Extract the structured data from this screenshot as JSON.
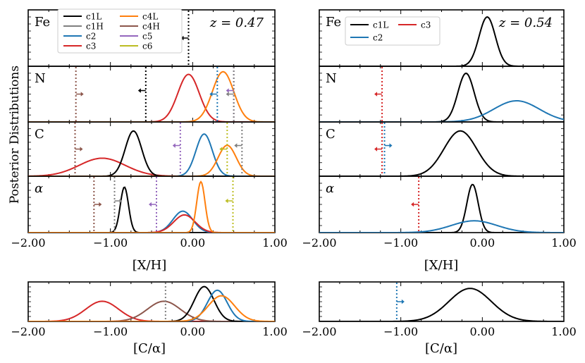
{
  "figure": {
    "ylabel": "Posterior Distributions",
    "xlabel_main": "[X/H]",
    "xlabel_ratio": "[C/α]",
    "xticks": [
      -2.0,
      -1.0,
      0.0,
      1.0
    ],
    "xtick_labels": [
      "−2.00",
      "−1.00",
      "0.00",
      "1.00"
    ],
    "xlim": [
      -2.0,
      1.0
    ]
  },
  "legend_left": {
    "entries": [
      {
        "label": "c1L",
        "color": "#000000"
      },
      {
        "label": "c1H",
        "color": "#7f7f7f"
      },
      {
        "label": "c2",
        "color": "#1f77b4"
      },
      {
        "label": "c3",
        "color": "#d62728"
      },
      {
        "label": "c4L",
        "color": "#ff7f0e"
      },
      {
        "label": "c4H",
        "color": "#8c564b"
      },
      {
        "label": "c5",
        "color": "#9467bd"
      },
      {
        "label": "c6",
        "color": "#bcbd22"
      }
    ]
  },
  "legend_right": {
    "entries": [
      {
        "label": "c1L",
        "color": "#000000"
      },
      {
        "label": "c3",
        "color": "#d62728"
      },
      {
        "label": "c2",
        "color": "#1f77b4"
      }
    ]
  },
  "chart_data": [
    {
      "type": "line",
      "panel": "left-Fe",
      "label": "Fe",
      "annotation": "z = 0.47",
      "series": [],
      "limits": [
        {
          "series": "c1L",
          "color": "#000000",
          "x": -0.05,
          "direction": "left"
        }
      ]
    },
    {
      "type": "line",
      "panel": "left-N",
      "label": "N",
      "series": [
        {
          "name": "c3",
          "color": "#d62728",
          "mu": -0.05,
          "sigma": 0.13,
          "amp": 0.9
        },
        {
          "name": "c4L",
          "color": "#ff7f0e",
          "mu": 0.37,
          "sigma": 0.13,
          "amp": 0.95
        }
      ],
      "limits": [
        {
          "series": "c4H",
          "color": "#8c564b",
          "x": -1.42,
          "direction": "right"
        },
        {
          "series": "c1L",
          "color": "#000000",
          "x": -0.57,
          "direction": "left"
        },
        {
          "series": "c2",
          "color": "#1f77b4",
          "x": 0.3,
          "direction": "left"
        },
        {
          "series": "c5",
          "color": "#9467bd",
          "x": 0.5,
          "direction": "left"
        },
        {
          "series": "c1H",
          "color": "#7f7f7f",
          "x": 0.5,
          "direction": "left"
        }
      ]
    },
    {
      "type": "line",
      "panel": "left-C",
      "label": "C",
      "series": [
        {
          "name": "c3",
          "color": "#d62728",
          "mu": -1.1,
          "sigma": 0.28,
          "amp": 0.35
        },
        {
          "name": "c1L",
          "color": "#000000",
          "mu": -0.72,
          "sigma": 0.1,
          "amp": 0.88
        },
        {
          "name": "c2",
          "color": "#1f77b4",
          "mu": 0.14,
          "sigma": 0.1,
          "amp": 0.82
        },
        {
          "name": "c4L",
          "color": "#ff7f0e",
          "mu": 0.42,
          "sigma": 0.11,
          "amp": 0.6
        }
      ],
      "limits": [
        {
          "series": "c4H",
          "color": "#8c564b",
          "x": -1.43,
          "direction": "right"
        },
        {
          "series": "c5",
          "color": "#9467bd",
          "x": -0.15,
          "direction": "left"
        },
        {
          "series": "c6",
          "color": "#bcbd22",
          "x": 0.42,
          "direction": "left"
        },
        {
          "series": "c1H",
          "color": "#7f7f7f",
          "x": 0.6,
          "direction": "left"
        }
      ]
    },
    {
      "type": "line",
      "panel": "left-alpha",
      "label": "α",
      "series": [
        {
          "name": "c1L",
          "color": "#000000",
          "mu": -0.83,
          "sigma": 0.05,
          "amp": 0.85
        },
        {
          "name": "c2",
          "color": "#1f77b4",
          "mu": -0.12,
          "sigma": 0.12,
          "amp": 0.4
        },
        {
          "name": "c3",
          "color": "#d62728",
          "mu": -0.1,
          "sigma": 0.13,
          "amp": 0.33
        },
        {
          "name": "c4L",
          "color": "#ff7f0e",
          "mu": 0.1,
          "sigma": 0.05,
          "amp": 0.95
        }
      ],
      "limits": [
        {
          "series": "c4H",
          "color": "#8c564b",
          "x": -1.2,
          "direction": "right"
        },
        {
          "series": "c1H",
          "color": "#7f7f7f",
          "x": -0.95,
          "direction": "right"
        },
        {
          "series": "c5",
          "color": "#9467bd",
          "x": -0.44,
          "direction": "left"
        },
        {
          "series": "c6",
          "color": "#bcbd22",
          "x": 0.49,
          "direction": "left"
        }
      ]
    },
    {
      "type": "line",
      "panel": "left-C-alpha",
      "series": [
        {
          "name": "c3",
          "color": "#d62728",
          "mu": -1.1,
          "sigma": 0.2,
          "amp": 0.55
        },
        {
          "name": "c4H",
          "color": "#8c564b",
          "mu": -0.35,
          "sigma": 0.2,
          "amp": 0.55
        },
        {
          "name": "c1L",
          "color": "#000000",
          "mu": 0.14,
          "sigma": 0.12,
          "amp": 0.95
        },
        {
          "name": "c2",
          "color": "#1f77b4",
          "mu": 0.3,
          "sigma": 0.12,
          "amp": 0.85
        },
        {
          "name": "c4L",
          "color": "#ff7f0e",
          "mu": 0.35,
          "sigma": 0.16,
          "amp": 0.7
        }
      ],
      "limits": [
        {
          "series": "c1H",
          "color": "#7f7f7f",
          "x": -0.33,
          "direction": "none"
        }
      ]
    },
    {
      "type": "line",
      "panel": "right-Fe",
      "label": "Fe",
      "annotation": "z = 0.54",
      "series": [
        {
          "name": "c1L",
          "color": "#000000",
          "mu": 0.06,
          "sigma": 0.1,
          "amp": 0.92
        }
      ],
      "limits": []
    },
    {
      "type": "line",
      "panel": "right-N",
      "label": "N",
      "series": [
        {
          "name": "c1L",
          "color": "#000000",
          "mu": -0.2,
          "sigma": 0.1,
          "amp": 0.92
        },
        {
          "name": "c2",
          "color": "#1f77b4",
          "mu": 0.42,
          "sigma": 0.28,
          "amp": 0.4
        }
      ],
      "limits": [
        {
          "series": "c3",
          "color": "#d62728",
          "x": -1.23,
          "direction": "left"
        }
      ]
    },
    {
      "type": "line",
      "panel": "right-C",
      "label": "C",
      "series": [
        {
          "name": "c1L",
          "color": "#000000",
          "mu": -0.27,
          "sigma": 0.2,
          "amp": 0.88
        }
      ],
      "limits": [
        {
          "series": "c3",
          "color": "#d62728",
          "x": -1.23,
          "direction": "left"
        },
        {
          "series": "c2",
          "color": "#1f77b4",
          "x": -1.2,
          "direction": "right"
        }
      ]
    },
    {
      "type": "line",
      "panel": "right-alpha",
      "label": "α",
      "series": [
        {
          "name": "c1L",
          "color": "#000000",
          "mu": -0.12,
          "sigma": 0.07,
          "amp": 0.9
        },
        {
          "name": "c2",
          "color": "#1f77b4",
          "mu": -0.1,
          "sigma": 0.28,
          "amp": 0.22
        }
      ],
      "limits": [
        {
          "series": "c3",
          "color": "#d62728",
          "x": -0.78,
          "direction": "left"
        }
      ]
    },
    {
      "type": "line",
      "panel": "right-C-alpha",
      "series": [
        {
          "name": "c1L",
          "color": "#000000",
          "mu": -0.15,
          "sigma": 0.26,
          "amp": 0.9
        }
      ],
      "limits": [
        {
          "series": "c2",
          "color": "#1f77b4",
          "x": -1.05,
          "direction": "right"
        }
      ]
    }
  ]
}
